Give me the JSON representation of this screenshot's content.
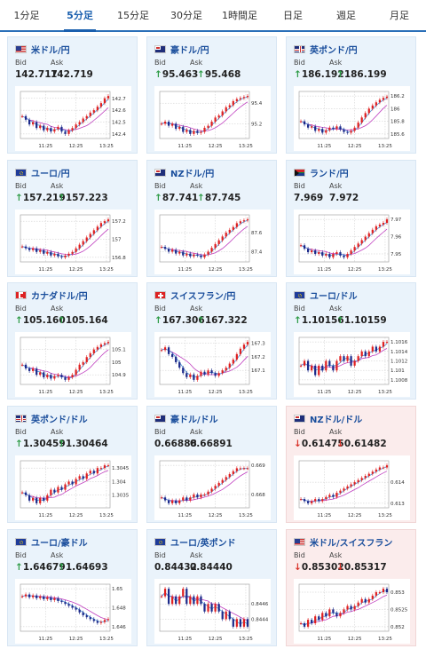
{
  "tabs": [
    {
      "label": "1分足",
      "active": false
    },
    {
      "label": "5分足",
      "active": true
    },
    {
      "label": "15分足",
      "active": false
    },
    {
      "label": "30分足",
      "active": false
    },
    {
      "label": "1時間足",
      "active": false
    },
    {
      "label": "日足",
      "active": false
    },
    {
      "label": "週足",
      "active": false
    },
    {
      "label": "月足",
      "active": false
    }
  ],
  "bid_label": "Bid",
  "ask_label": "Ask",
  "colors": {
    "up": "#2e9b46",
    "down": "#d9342b",
    "candle_up": "#e02020",
    "candle_down": "#1c2a8a",
    "ma_fast": "#4a8fd8",
    "ma_slow": "#c040c0",
    "tab_active": "#1a5fae"
  },
  "pairs": [
    {
      "name": "米ドル/円",
      "flag": "us",
      "dir": "none",
      "bid": "142.717",
      "ask": "142.719",
      "yticks": [
        "142.7",
        "142.6",
        "142.5",
        "142.4"
      ],
      "xticks": [
        "11:25",
        "12:25",
        "13:25"
      ],
      "series": [
        142.55,
        142.52,
        142.48,
        142.5,
        142.45,
        142.47,
        142.43,
        142.45,
        142.42,
        142.44,
        142.46,
        142.42,
        142.4,
        142.43,
        142.45,
        142.48,
        142.5,
        142.53,
        142.55,
        142.58,
        142.6,
        142.63,
        142.66,
        142.7,
        142.72
      ]
    },
    {
      "name": "豪ドル/円",
      "flag": "au",
      "dir": "up",
      "bid": "95.463",
      "ask": "95.468",
      "yticks": [
        "95.4",
        "95.2"
      ],
      "xticks": [
        "11:25",
        "12:25",
        "13:25"
      ],
      "series": [
        95.2,
        95.22,
        95.18,
        95.2,
        95.15,
        95.17,
        95.12,
        95.14,
        95.1,
        95.13,
        95.11,
        95.12,
        95.16,
        95.18,
        95.22,
        95.26,
        95.28,
        95.32,
        95.36,
        95.38,
        95.42,
        95.44,
        95.45,
        95.46,
        95.47
      ]
    },
    {
      "name": "英ポンド/円",
      "flag": "gb",
      "dir": "up",
      "bid": "186.192",
      "ask": "186.199",
      "yticks": [
        "186.2",
        "186",
        "185.8",
        "185.6"
      ],
      "xticks": [
        "11:25",
        "12:25",
        "13:25"
      ],
      "series": [
        185.8,
        185.75,
        185.7,
        185.72,
        185.65,
        185.68,
        185.62,
        185.66,
        185.7,
        185.68,
        185.72,
        185.67,
        185.63,
        185.62,
        185.65,
        185.7,
        185.78,
        185.86,
        185.93,
        186.0,
        186.05,
        186.1,
        186.14,
        186.17,
        186.19
      ]
    },
    {
      "name": "ユーロ/円",
      "flag": "eu",
      "dir": "up",
      "bid": "157.219",
      "ask": "157.223",
      "yticks": [
        "157.2",
        "157",
        "156.8"
      ],
      "xticks": [
        "11:25",
        "12:25",
        "13:25"
      ],
      "series": [
        156.92,
        156.9,
        156.88,
        156.9,
        156.86,
        156.88,
        156.84,
        156.86,
        156.82,
        156.84,
        156.81,
        156.8,
        156.82,
        156.84,
        156.86,
        156.9,
        156.94,
        156.98,
        157.02,
        157.06,
        157.1,
        157.14,
        157.18,
        157.2,
        157.22
      ]
    },
    {
      "name": "NZドル/円",
      "flag": "nz",
      "dir": "up",
      "bid": "87.741",
      "ask": "87.745",
      "yticks": [
        "87.6",
        "87.4"
      ],
      "xticks": [
        "11:25",
        "12:25",
        "13:25"
      ],
      "series": [
        87.45,
        87.43,
        87.4,
        87.42,
        87.38,
        87.4,
        87.36,
        87.38,
        87.35,
        87.37,
        87.36,
        87.34,
        87.37,
        87.4,
        87.44,
        87.48,
        87.52,
        87.56,
        87.6,
        87.63,
        87.66,
        87.7,
        87.72,
        87.73,
        87.74
      ]
    },
    {
      "name": "ランド/円",
      "flag": "za",
      "dir": "none",
      "bid": "7.969",
      "ask": "7.972",
      "yticks": [
        "7.97",
        "7.96",
        "7.95"
      ],
      "xticks": [
        "11:25",
        "12:25",
        "13:25"
      ],
      "series": [
        7.955,
        7.953,
        7.951,
        7.952,
        7.95,
        7.951,
        7.949,
        7.95,
        7.948,
        7.95,
        7.951,
        7.949,
        7.948,
        7.95,
        7.952,
        7.954,
        7.956,
        7.958,
        7.96,
        7.962,
        7.964,
        7.966,
        7.967,
        7.968,
        7.97
      ]
    },
    {
      "name": "カナダドル/円",
      "flag": "ca",
      "dir": "up",
      "bid": "105.160",
      "ask": "105.164",
      "yticks": [
        "105.1",
        "105",
        "104.9"
      ],
      "xticks": [
        "11:25",
        "12:25",
        "13:25"
      ],
      "series": [
        104.98,
        104.95,
        104.93,
        104.95,
        104.9,
        104.92,
        104.88,
        104.9,
        104.87,
        104.89,
        104.9,
        104.88,
        104.86,
        104.88,
        104.9,
        104.94,
        104.98,
        105.0,
        105.04,
        105.07,
        105.1,
        105.12,
        105.14,
        105.15,
        105.16
      ]
    },
    {
      "name": "スイスフラン/円",
      "flag": "ch",
      "dir": "up",
      "bid": "167.306",
      "ask": "167.322",
      "yticks": [
        "167.3",
        "167.2",
        "167.1"
      ],
      "xticks": [
        "11:25",
        "12:25",
        "13:25"
      ],
      "series": [
        167.25,
        167.27,
        167.22,
        167.2,
        167.16,
        167.12,
        167.08,
        167.05,
        167.07,
        167.03,
        167.06,
        167.09,
        167.07,
        167.1,
        167.08,
        167.06,
        167.08,
        167.1,
        167.12,
        167.15,
        167.18,
        167.22,
        167.26,
        167.29,
        167.31
      ]
    },
    {
      "name": "ユーロ/ドル",
      "flag": "eu",
      "dir": "up",
      "bid": "1.10156",
      "ask": "1.10159",
      "yticks": [
        "1.1016",
        "1.1014",
        "1.1012",
        "1.101",
        "1.1008"
      ],
      "xticks": [
        "11:25",
        "12:25",
        "13:25"
      ],
      "series": [
        1.1011,
        1.1012,
        1.101,
        1.1011,
        1.1009,
        1.1011,
        1.101,
        1.1012,
        1.1011,
        1.101,
        1.1012,
        1.1013,
        1.1012,
        1.1013,
        1.1011,
        1.1012,
        1.1013,
        1.1014,
        1.1013,
        1.1014,
        1.1015,
        1.1014,
        1.1015,
        1.1016,
        1.1016
      ]
    },
    {
      "name": "英ポンド/ドル",
      "flag": "gb",
      "dir": "up",
      "bid": "1.30459",
      "ask": "1.30464",
      "yticks": [
        "1.3045",
        "1.304",
        "1.3035"
      ],
      "xticks": [
        "11:25",
        "12:25",
        "13:25"
      ],
      "series": [
        1.3036,
        1.3035,
        1.3033,
        1.3034,
        1.3032,
        1.3034,
        1.3033,
        1.3035,
        1.3037,
        1.3036,
        1.3038,
        1.3037,
        1.3039,
        1.304,
        1.3039,
        1.3041,
        1.3042,
        1.3041,
        1.3043,
        1.3044,
        1.3043,
        1.3045,
        1.3045,
        1.3046,
        1.3046
      ]
    },
    {
      "name": "豪ドル/ドル",
      "flag": "au",
      "dir": "none",
      "bid": "0.66888",
      "ask": "0.66891",
      "yticks": [
        "0.669",
        "0.668"
      ],
      "xticks": [
        "11:25",
        "12:25",
        "13:25"
      ],
      "series": [
        0.6679,
        0.6678,
        0.6677,
        0.6678,
        0.6677,
        0.6678,
        0.6679,
        0.6678,
        0.6679,
        0.668,
        0.6679,
        0.668,
        0.668,
        0.6681,
        0.6682,
        0.6683,
        0.6684,
        0.6685,
        0.6686,
        0.6687,
        0.6688,
        0.6689,
        0.6689,
        0.6689,
        0.6689
      ]
    },
    {
      "name": "NZドル/ドル",
      "flag": "nz",
      "dir": "down",
      "bid": "0.61475",
      "ask": "0.61482",
      "yticks": [
        "0.614",
        "0.613"
      ],
      "xticks": [
        "11:25",
        "12:25",
        "13:25"
      ],
      "series": [
        0.6132,
        0.6131,
        0.613,
        0.6131,
        0.6132,
        0.6131,
        0.6132,
        0.6133,
        0.6134,
        0.6133,
        0.6135,
        0.6136,
        0.6137,
        0.6138,
        0.6139,
        0.614,
        0.6141,
        0.6142,
        0.6143,
        0.6144,
        0.6145,
        0.6146,
        0.6147,
        0.6147,
        0.6148
      ]
    },
    {
      "name": "ユーロ/豪ドル",
      "flag": "eu",
      "dir": "up",
      "bid": "1.64679",
      "ask": "1.64693",
      "yticks": [
        "1.65",
        "1.648",
        "1.646"
      ],
      "xticks": [
        "11:25",
        "12:25",
        "13:25"
      ],
      "series": [
        1.6492,
        1.6494,
        1.6491,
        1.6493,
        1.649,
        1.6492,
        1.6489,
        1.6491,
        1.6488,
        1.649,
        1.6487,
        1.6486,
        1.6484,
        1.6482,
        1.648,
        1.6478,
        1.6475,
        1.6472,
        1.647,
        1.6468,
        1.6466,
        1.6464,
        1.6465,
        1.6467,
        1.6468
      ]
    },
    {
      "name": "ユーロ/英ポンド",
      "flag": "eu",
      "dir": "none",
      "bid": "0.84432",
      "ask": "0.84440",
      "yticks": [
        "0.8446",
        "0.8444"
      ],
      "xticks": [
        "11:25",
        "12:25",
        "13:25"
      ],
      "series": [
        0.8447,
        0.8448,
        0.8446,
        0.8447,
        0.8446,
        0.8447,
        0.8448,
        0.8446,
        0.8447,
        0.8446,
        0.8447,
        0.8446,
        0.8445,
        0.8446,
        0.8445,
        0.8446,
        0.8445,
        0.8444,
        0.8445,
        0.8444,
        0.8443,
        0.8444,
        0.8443,
        0.8444,
        0.8443
      ]
    },
    {
      "name": "米ドル/スイスフラン",
      "flag": "us",
      "dir": "down",
      "bid": "0.85302",
      "ask": "0.85317",
      "yticks": [
        "0.853",
        "0.8525",
        "0.852"
      ],
      "xticks": [
        "11:25",
        "12:25",
        "13:25"
      ],
      "series": [
        0.8521,
        0.852,
        0.8522,
        0.8521,
        0.8523,
        0.8522,
        0.8524,
        0.8523,
        0.8525,
        0.8524,
        0.8523,
        0.8524,
        0.8525,
        0.8526,
        0.8525,
        0.8526,
        0.8527,
        0.8528,
        0.8527,
        0.8528,
        0.8529,
        0.853,
        0.853,
        0.8531,
        0.853
      ]
    }
  ]
}
